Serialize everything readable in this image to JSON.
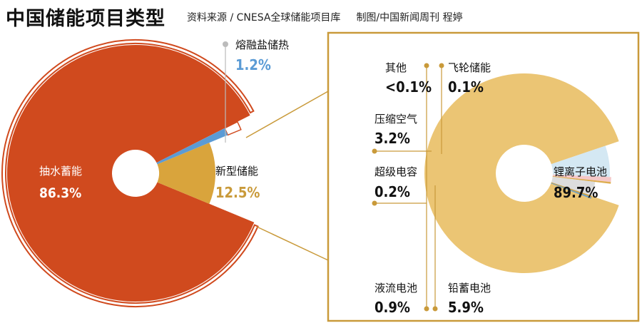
{
  "header": {
    "title": "中国储能项目类型",
    "source": "资料来源 / CNESA全球储能项目库",
    "credit": "制图/中国新闻周刊 程婷"
  },
  "colors": {
    "pumped": "#D04A1E",
    "new": "#D9A43C",
    "thermal": "#5B9BD5",
    "lithium": "#EBC574",
    "lead": "#CFE6F2",
    "compressed": "#D9D9D9",
    "flow": "#F4C2C2",
    "frame": "#D04A1E",
    "callout": "#C99A3A"
  },
  "chart_data": [
    {
      "type": "pie",
      "slices": [
        {
          "name": "抽水蓄能",
          "value": 86.3,
          "label": "86.3%"
        },
        {
          "name": "新型储能",
          "value": 12.5,
          "label": "12.5%"
        },
        {
          "name": "熔融盐储热",
          "value": 1.2,
          "label": "1.2%"
        }
      ]
    },
    {
      "type": "pie",
      "slices": [
        {
          "name": "锂离子电池",
          "value": 89.7,
          "label": "89.7%"
        },
        {
          "name": "铅蓄电池",
          "value": 5.9,
          "label": "5.9%"
        },
        {
          "name": "液流电池",
          "value": 0.9,
          "label": "0.9%"
        },
        {
          "name": "超级电容",
          "value": 0.2,
          "label": "0.2%"
        },
        {
          "name": "压缩空气",
          "value": 3.2,
          "label": "3.2%"
        },
        {
          "name": "其他",
          "value": 0.1,
          "label": "<0.1%"
        },
        {
          "name": "飞轮储能",
          "value": 0.1,
          "label": "0.1%"
        }
      ]
    }
  ]
}
